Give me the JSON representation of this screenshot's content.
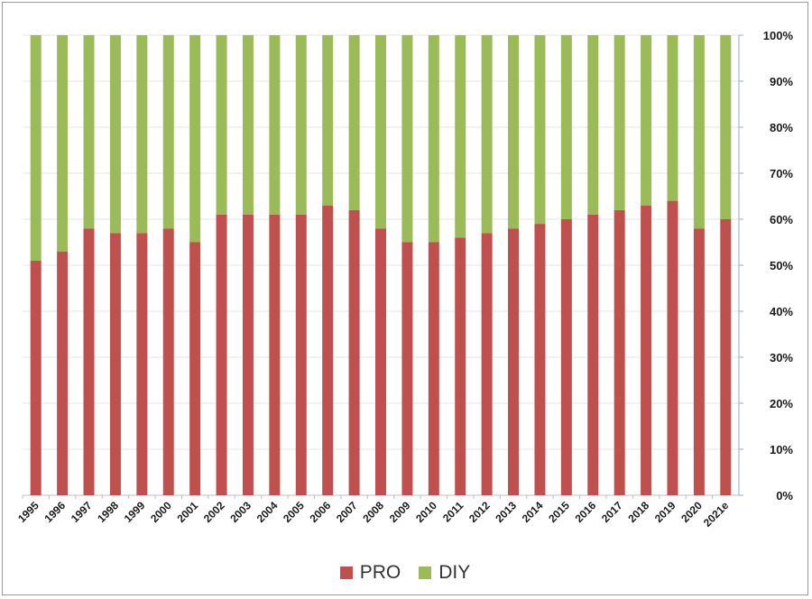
{
  "chart_data": {
    "type": "bar",
    "stacked": true,
    "percent_stacked": true,
    "categories": [
      "1995",
      "1996",
      "1997",
      "1998",
      "1999",
      "2000",
      "2001",
      "2002",
      "2003",
      "2004",
      "2005",
      "2006",
      "2007",
      "2008",
      "2009",
      "2010",
      "2011",
      "2012",
      "2013",
      "2014",
      "2015",
      "2016",
      "2017",
      "2018",
      "2019",
      "2020",
      "2021e"
    ],
    "series": [
      {
        "name": "PRO",
        "color": "#c0504d",
        "values": [
          51,
          53,
          58,
          57,
          57,
          58,
          55,
          61,
          61,
          61,
          61,
          63,
          62,
          58,
          55,
          55,
          56,
          57,
          58,
          59,
          60,
          61,
          62,
          63,
          64,
          58,
          60
        ]
      },
      {
        "name": "DIY",
        "color": "#9bbb59",
        "values": [
          49,
          47,
          42,
          43,
          43,
          42,
          45,
          39,
          39,
          39,
          39,
          37,
          38,
          42,
          45,
          45,
          44,
          43,
          42,
          41,
          40,
          39,
          38,
          37,
          36,
          42,
          40
        ]
      }
    ],
    "yticks": [
      "0%",
      "10%",
      "20%",
      "30%",
      "40%",
      "50%",
      "60%",
      "70%",
      "80%",
      "90%",
      "100%"
    ],
    "ylim": [
      0,
      100
    ],
    "y_axis_side": "right",
    "grid": true,
    "legend_position": "bottom",
    "title": "",
    "xlabel": "",
    "ylabel": ""
  }
}
